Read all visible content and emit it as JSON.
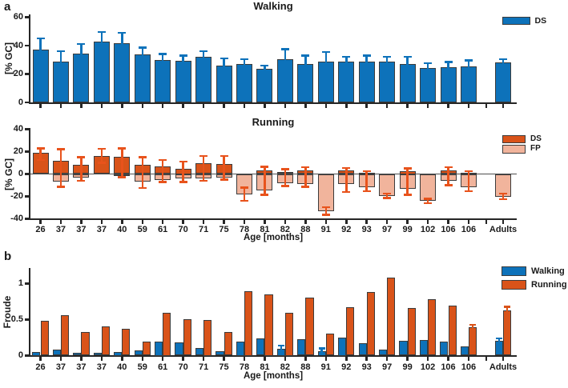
{
  "panel_labels": {
    "a": "a",
    "b": "b"
  },
  "age_categories": [
    "26",
    "37",
    "37",
    "37",
    "40",
    "59",
    "61",
    "70",
    "71",
    "75",
    "78",
    "81",
    "82",
    "88",
    "91",
    "92",
    "93",
    "97",
    "99",
    "102",
    "106",
    "106",
    "Adults"
  ],
  "colors": {
    "walking_blue": "#0D72BA",
    "running_dark": "#D95319",
    "running_light": "#F1B49C",
    "running_error": "#E8531C",
    "axis": "#262626",
    "bar_edge": "#3C3C3C",
    "text": "#1A1A1A",
    "zero_line": "#4D4D4D"
  },
  "chart_data": [
    {
      "id": "walking",
      "type": "bar",
      "title": "Walking",
      "ylabel": "[% GC]",
      "ylim": [
        0,
        60
      ],
      "yticks": [
        0,
        20,
        40,
        60
      ],
      "ytick_labels": [
        "0",
        "20",
        "40",
        "60"
      ],
      "legend": [
        {
          "label": "DS",
          "color_key": "walking_blue"
        }
      ],
      "categories": [
        "26",
        "37",
        "37",
        "37",
        "40",
        "59",
        "61",
        "70",
        "71",
        "75",
        "78",
        "81",
        "82",
        "88",
        "91",
        "92",
        "93",
        "97",
        "99",
        "102",
        "106",
        "106",
        "Adults"
      ],
      "series": [
        {
          "name": "DS",
          "color_key": "walking_blue",
          "values": [
            37,
            29,
            34.5,
            43,
            41.5,
            34,
            30,
            29.5,
            32,
            26,
            27,
            23.5,
            30.5,
            27,
            28.5,
            28.5,
            29,
            28.5,
            27,
            24.5,
            25,
            25.5,
            28
          ],
          "err": [
            8,
            7,
            6.5,
            6.5,
            7.5,
            4.5,
            4,
            3.5,
            4,
            5,
            3.5,
            2.5,
            7,
            6,
            7,
            3.5,
            4,
            3.5,
            5,
            3,
            3.5,
            4,
            2.5
          ]
        }
      ]
    },
    {
      "id": "running",
      "type": "bar",
      "title": "Running",
      "ylabel": "[% GC]",
      "xlabel": "Age [months]",
      "ylim": [
        -40,
        40
      ],
      "yticks": [
        -40,
        -20,
        0,
        20,
        40
      ],
      "ytick_labels": [
        "-40",
        "-20",
        "0",
        "20",
        "40"
      ],
      "legend": [
        {
          "label": "DS",
          "color_key": "running_dark"
        },
        {
          "label": "FP",
          "color_key": "running_light"
        }
      ],
      "error_color_key": "running_error",
      "categories": [
        "26",
        "37",
        "37",
        "37",
        "40",
        "59",
        "61",
        "70",
        "71",
        "75",
        "78",
        "81",
        "82",
        "88",
        "91",
        "92",
        "93",
        "97",
        "99",
        "102",
        "106",
        "106",
        "Adults"
      ],
      "series": [
        {
          "name": "DS",
          "color_key": "running_dark",
          "values": [
            19,
            12,
            8.5,
            16,
            15.5,
            8,
            7,
            5,
            9.5,
            9,
            0,
            3.5,
            1.7,
            3,
            0,
            3,
            1,
            0,
            2.5,
            0,
            3,
            1,
            0
          ]
        },
        {
          "name": "FP",
          "color_key": "running_light",
          "values": [
            0,
            -6.5,
            -3,
            0,
            -2,
            -6.5,
            -5,
            -4,
            -4,
            -3,
            -18,
            -14.5,
            -8.2,
            -9,
            -33,
            -9,
            -12,
            -19.5,
            -13,
            -24,
            -6.3,
            -11.5,
            -20
          ]
        }
      ],
      "err_up": [
        23,
        22,
        15,
        22.5,
        23,
        15,
        12.5,
        11,
        16,
        16,
        -12,
        6.5,
        4.3,
        5.9,
        -29.5,
        5.2,
        2.5,
        -17.5,
        5,
        -22,
        6,
        2.5,
        -17.5
      ],
      "err_down": [
        12.5,
        -11.5,
        -6,
        10,
        -3,
        -12.5,
        -7,
        -7,
        -6,
        -5,
        -24,
        -18.5,
        -10.6,
        -11.3,
        -36.5,
        -16.2,
        -15.5,
        -21.5,
        -18.5,
        -26,
        -10,
        -15.5,
        -22.5
      ]
    },
    {
      "id": "froude",
      "type": "bar",
      "title": "",
      "ylabel": "Froude",
      "xlabel": "Age [months]",
      "ylim": [
        0,
        1.2
      ],
      "yticks": [
        0,
        0.5,
        1
      ],
      "ytick_labels": [
        "0",
        "0.5",
        "1"
      ],
      "legend": [
        {
          "label": "Walking",
          "color_key": "walking_blue"
        },
        {
          "label": "Running",
          "color_key": "running_dark"
        }
      ],
      "categories": [
        "26",
        "37",
        "37",
        "37",
        "40",
        "59",
        "61",
        "70",
        "71",
        "75",
        "78",
        "81",
        "82",
        "88",
        "91",
        "92",
        "93",
        "97",
        "99",
        "102",
        "106",
        "106",
        "Adults"
      ],
      "series": [
        {
          "name": "Walking",
          "color_key": "walking_blue",
          "values": [
            0.05,
            0.08,
            0.04,
            0.04,
            0.05,
            0.07,
            0.2,
            0.18,
            0.11,
            0.06,
            0.2,
            0.24,
            0.1,
            0.23,
            0.06,
            0.25,
            0.17,
            0.08,
            0.21,
            0.22,
            0.19,
            0.13,
            0.21
          ],
          "err": [
            0,
            0,
            0,
            0,
            0,
            0,
            0,
            0,
            0,
            0,
            0,
            0,
            0.04,
            0,
            0.04,
            0,
            0,
            0,
            0,
            0,
            0,
            0,
            0.03
          ]
        },
        {
          "name": "Running",
          "color_key": "running_dark",
          "values": [
            0.48,
            0.56,
            0.33,
            0.41,
            0.37,
            0.19,
            0.6,
            0.51,
            0.5,
            0.33,
            0.9,
            0.85,
            0.6,
            0.81,
            0.31,
            0.67,
            0.88,
            1.08,
            0.66,
            0.78,
            0.69,
            0.39,
            0.63
          ],
          "err": [
            0,
            0,
            0,
            0,
            0,
            0,
            0,
            0,
            0,
            0,
            0,
            0,
            0,
            0,
            0,
            0,
            0,
            0,
            0,
            0,
            0,
            0.04,
            0.05
          ]
        }
      ]
    }
  ]
}
